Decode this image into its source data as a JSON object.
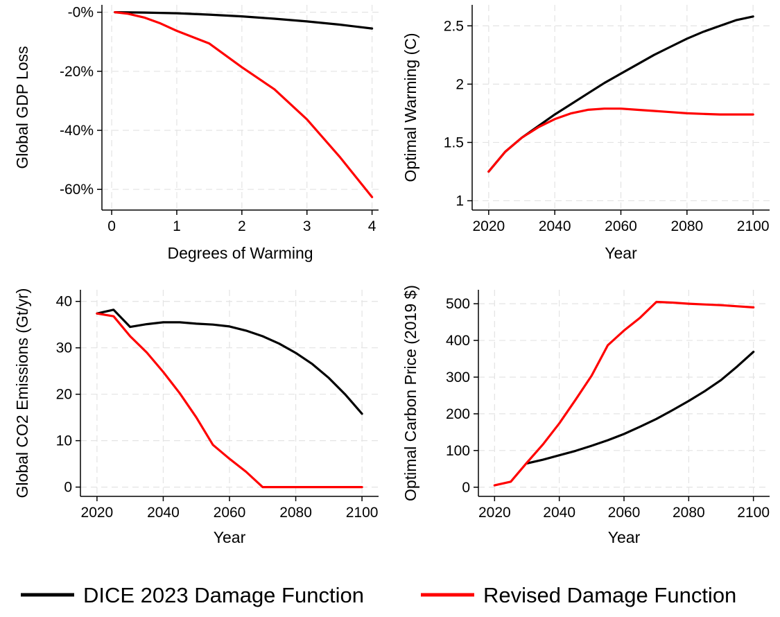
{
  "legend": [
    {
      "name": "DICE 2023 Damage Function",
      "color": "#000000"
    },
    {
      "name": "Revised Damage Function",
      "color": "#ff0000"
    }
  ],
  "chart_data": [
    {
      "type": "line",
      "xlabel": "Degrees of Warming",
      "ylabel": "Global GDP Loss",
      "xlim": [
        -0.15,
        4.1
      ],
      "ylim": [
        -67,
        2.5
      ],
      "xticks": [
        0,
        1,
        2,
        3,
        4
      ],
      "xtick_labels": [
        "0",
        "1",
        "2",
        "3",
        "4"
      ],
      "yticks": [
        0,
        -20,
        -40,
        -60
      ],
      "ytick_labels": [
        "-0%",
        "-20%",
        "-40%",
        "-60%"
      ],
      "grid": true,
      "series": [
        {
          "name": "DICE 2023 Damage Function",
          "color": "#000000",
          "x": [
            0.05,
            0.5,
            1,
            1.5,
            2,
            2.5,
            3,
            3.5,
            4
          ],
          "y": [
            0,
            -0.1,
            -0.35,
            -0.8,
            -1.4,
            -2.2,
            -3.1,
            -4.2,
            -5.5
          ]
        },
        {
          "name": "Revised Damage Function",
          "color": "#ff0000",
          "x": [
            0.05,
            0.25,
            0.5,
            0.75,
            1,
            1.5,
            2,
            2.5,
            3,
            3.5,
            4
          ],
          "y": [
            0,
            -0.5,
            -1.8,
            -3.8,
            -6.3,
            -10.6,
            -18.6,
            -26.1,
            -36.3,
            -48.9,
            -62.6
          ]
        }
      ]
    },
    {
      "type": "line",
      "xlabel": "Year",
      "ylabel": "Optimal Warming (C)",
      "xlim": [
        2015,
        2105
      ],
      "ylim": [
        0.92,
        2.68
      ],
      "xticks": [
        2020,
        2040,
        2060,
        2080,
        2100
      ],
      "xtick_labels": [
        "2020",
        "2040",
        "2060",
        "2080",
        "2100"
      ],
      "yticks": [
        1,
        1.5,
        2,
        2.5
      ],
      "ytick_labels": [
        "1",
        "1.5",
        "2",
        "2.5"
      ],
      "grid": true,
      "series": [
        {
          "name": "DICE 2023 Damage Function",
          "color": "#000000",
          "x": [
            2020,
            2025,
            2030,
            2035,
            2040,
            2045,
            2050,
            2055,
            2060,
            2065,
            2070,
            2075,
            2080,
            2085,
            2090,
            2095,
            2100
          ],
          "y": [
            1.25,
            1.42,
            1.54,
            1.64,
            1.74,
            1.83,
            1.92,
            2.01,
            2.09,
            2.17,
            2.25,
            2.32,
            2.39,
            2.45,
            2.5,
            2.55,
            2.58
          ]
        },
        {
          "name": "Revised Damage Function",
          "color": "#ff0000",
          "x": [
            2020,
            2025,
            2030,
            2035,
            2040,
            2045,
            2050,
            2055,
            2060,
            2065,
            2070,
            2075,
            2080,
            2085,
            2090,
            2095,
            2100
          ],
          "y": [
            1.25,
            1.42,
            1.54,
            1.63,
            1.7,
            1.75,
            1.78,
            1.79,
            1.79,
            1.78,
            1.77,
            1.76,
            1.75,
            1.745,
            1.74,
            1.74,
            1.74
          ]
        }
      ]
    },
    {
      "type": "line",
      "xlabel": "Year",
      "ylabel": "Global CO2 Emissions (Gt/yr)",
      "xlim": [
        2015,
        2105
      ],
      "ylim": [
        -2,
        42.5
      ],
      "xticks": [
        2020,
        2040,
        2060,
        2080,
        2100
      ],
      "xtick_labels": [
        "2020",
        "2040",
        "2060",
        "2080",
        "2100"
      ],
      "yticks": [
        0,
        10,
        20,
        30,
        40
      ],
      "ytick_labels": [
        "0",
        "10",
        "20",
        "30",
        "40"
      ],
      "grid": true,
      "series": [
        {
          "name": "DICE 2023 Damage Function",
          "color": "#000000",
          "x": [
            2020,
            2025,
            2030,
            2035,
            2040,
            2045,
            2050,
            2055,
            2060,
            2065,
            2070,
            2075,
            2080,
            2085,
            2090,
            2095,
            2100
          ],
          "y": [
            37.4,
            38.2,
            34.5,
            35.1,
            35.5,
            35.5,
            35.2,
            35.0,
            34.6,
            33.7,
            32.5,
            30.9,
            28.9,
            26.5,
            23.5,
            19.9,
            15.8
          ]
        },
        {
          "name": "Revised Damage Function",
          "color": "#ff0000",
          "x": [
            2020,
            2025,
            2030,
            2035,
            2040,
            2045,
            2050,
            2055,
            2060,
            2065,
            2070,
            2075,
            2080,
            2085,
            2090,
            2095,
            2100
          ],
          "y": [
            37.4,
            36.8,
            32.5,
            29.0,
            24.8,
            20.2,
            15.0,
            9.1,
            6.1,
            3.3,
            0,
            0,
            0,
            0,
            0,
            0,
            0
          ]
        }
      ]
    },
    {
      "type": "line",
      "xlabel": "Year",
      "ylabel": "Optimal Carbon Price (2019 $)",
      "xlim": [
        2015,
        2105
      ],
      "ylim": [
        -25,
        538
      ],
      "xticks": [
        2020,
        2040,
        2060,
        2080,
        2100
      ],
      "xtick_labels": [
        "2020",
        "2040",
        "2060",
        "2080",
        "2100"
      ],
      "yticks": [
        0,
        100,
        200,
        300,
        400,
        500
      ],
      "ytick_labels": [
        "0",
        "100",
        "200",
        "300",
        "400",
        "500"
      ],
      "grid": true,
      "series": [
        {
          "name": "DICE 2023 Damage Function",
          "color": "#000000",
          "x": [
            2030,
            2035,
            2040,
            2045,
            2050,
            2055,
            2060,
            2065,
            2070,
            2075,
            2080,
            2085,
            2090,
            2095,
            2100
          ],
          "y": [
            65,
            75,
            87,
            99,
            113,
            128,
            145,
            165,
            186,
            210,
            235,
            262,
            292,
            329,
            369
          ]
        },
        {
          "name": "Revised Damage Function",
          "color": "#ff0000",
          "x": [
            2020,
            2025,
            2030,
            2035,
            2040,
            2045,
            2050,
            2055,
            2060,
            2065,
            2070,
            2075,
            2080,
            2085,
            2090,
            2095,
            2100
          ],
          "y": [
            5,
            15,
            67,
            117,
            174,
            238,
            304,
            387,
            427,
            462,
            505,
            503,
            500,
            498,
            496,
            493,
            490
          ]
        }
      ]
    }
  ]
}
